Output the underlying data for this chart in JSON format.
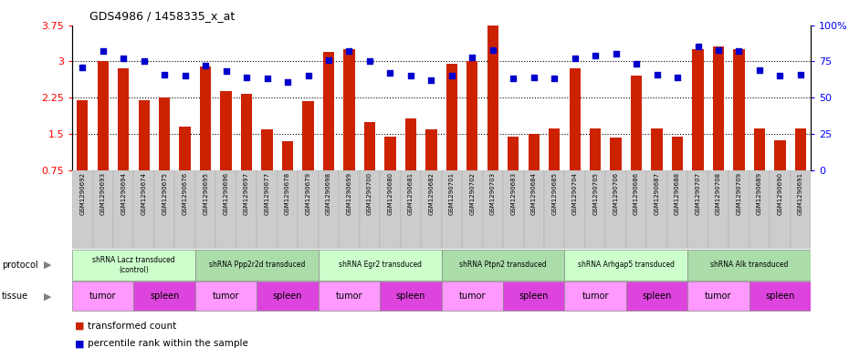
{
  "title": "GDS4986 / 1458335_x_at",
  "samples": [
    "GSM1290692",
    "GSM1290693",
    "GSM1290694",
    "GSM1290674",
    "GSM1290675",
    "GSM1290676",
    "GSM1290695",
    "GSM1290696",
    "GSM1290697",
    "GSM1290677",
    "GSM1290678",
    "GSM1290679",
    "GSM1290698",
    "GSM1290699",
    "GSM1290700",
    "GSM1290680",
    "GSM1290681",
    "GSM1290682",
    "GSM1290701",
    "GSM1290702",
    "GSM1290703",
    "GSM1290683",
    "GSM1290684",
    "GSM1290685",
    "GSM1290704",
    "GSM1290705",
    "GSM1290706",
    "GSM1290686",
    "GSM1290687",
    "GSM1290688",
    "GSM1290707",
    "GSM1290708",
    "GSM1290709",
    "GSM1290689",
    "GSM1290690",
    "GSM1290691"
  ],
  "bar_values": [
    2.2,
    3.0,
    2.85,
    2.2,
    2.25,
    1.65,
    2.9,
    2.38,
    2.33,
    1.6,
    1.35,
    2.18,
    3.2,
    3.25,
    1.75,
    1.45,
    1.82,
    1.6,
    2.95,
    3.0,
    3.75,
    1.45,
    1.5,
    1.62,
    2.85,
    1.62,
    1.43,
    2.7,
    1.62,
    1.45,
    3.25,
    3.3,
    3.25,
    1.62,
    1.37,
    1.62
  ],
  "dot_values": [
    71,
    82,
    77,
    75,
    66,
    65,
    72,
    68,
    64,
    63,
    61,
    65,
    76,
    82,
    75,
    67,
    65,
    62,
    65,
    78,
    83,
    63,
    64,
    63,
    77,
    79,
    80,
    73,
    66,
    64,
    85,
    83,
    82,
    69,
    65,
    66
  ],
  "protocols": [
    {
      "label": "shRNA Lacz transduced\n(control)",
      "start": 0,
      "end": 6,
      "color": "#ccffcc"
    },
    {
      "label": "shRNA Ppp2r2d transduced",
      "start": 6,
      "end": 12,
      "color": "#aaddaa"
    },
    {
      "label": "shRNA Egr2 transduced",
      "start": 12,
      "end": 18,
      "color": "#ccffcc"
    },
    {
      "label": "shRNA Ptpn2 transduced",
      "start": 18,
      "end": 24,
      "color": "#aaddaa"
    },
    {
      "label": "shRNA Arhgap5 transduced",
      "start": 24,
      "end": 30,
      "color": "#ccffcc"
    },
    {
      "label": "shRNA Alk transduced",
      "start": 30,
      "end": 36,
      "color": "#aaddaa"
    }
  ],
  "tissues": [
    {
      "label": "tumor",
      "start": 0,
      "end": 3,
      "color": "#ff99ff"
    },
    {
      "label": "spleen",
      "start": 3,
      "end": 6,
      "color": "#dd44dd"
    },
    {
      "label": "tumor",
      "start": 6,
      "end": 9,
      "color": "#ff99ff"
    },
    {
      "label": "spleen",
      "start": 9,
      "end": 12,
      "color": "#dd44dd"
    },
    {
      "label": "tumor",
      "start": 12,
      "end": 15,
      "color": "#ff99ff"
    },
    {
      "label": "spleen",
      "start": 15,
      "end": 18,
      "color": "#dd44dd"
    },
    {
      "label": "tumor",
      "start": 18,
      "end": 21,
      "color": "#ff99ff"
    },
    {
      "label": "spleen",
      "start": 21,
      "end": 24,
      "color": "#dd44dd"
    },
    {
      "label": "tumor",
      "start": 24,
      "end": 27,
      "color": "#ff99ff"
    },
    {
      "label": "spleen",
      "start": 27,
      "end": 30,
      "color": "#dd44dd"
    },
    {
      "label": "tumor",
      "start": 30,
      "end": 33,
      "color": "#ff99ff"
    },
    {
      "label": "spleen",
      "start": 33,
      "end": 36,
      "color": "#dd44dd"
    }
  ],
  "bar_color": "#cc2200",
  "dot_color": "#0000cc",
  "ylim_left": [
    0.75,
    3.75
  ],
  "ylim_right": [
    0,
    100
  ],
  "yticks_left": [
    0.75,
    1.5,
    2.25,
    3.0,
    3.75
  ],
  "yticks_right": [
    0,
    25,
    50,
    75,
    100
  ],
  "ytick_labels_left": [
    "0.75",
    "1.5",
    "2.25",
    "3",
    "3.75"
  ],
  "ytick_labels_right": [
    "0",
    "25",
    "50",
    "75",
    "100%"
  ],
  "grid_values": [
    1.5,
    2.25,
    3.0
  ],
  "n_samples": 36
}
